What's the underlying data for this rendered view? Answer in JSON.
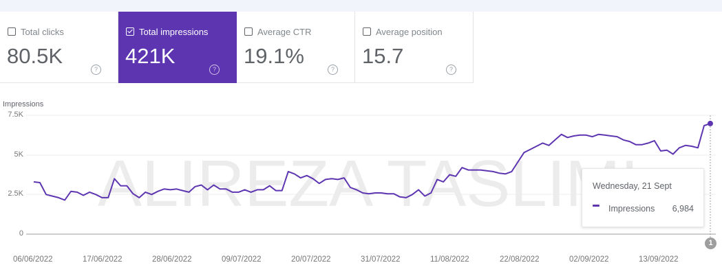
{
  "metrics": [
    {
      "label": "Total clicks",
      "value": "80.5K",
      "checked": false
    },
    {
      "label": "Total impressions",
      "value": "421K",
      "checked": true
    },
    {
      "label": "Average CTR",
      "value": "19.1%",
      "checked": false
    },
    {
      "label": "Average position",
      "value": "15.7",
      "checked": false
    }
  ],
  "help_glyph": "?",
  "watermark": "ALIREZA TASLIMI",
  "accent_color": "#5e35b1",
  "tooltip": {
    "date": "Wednesday, 21 Sept",
    "series": "Impressions",
    "value": "6,984"
  },
  "annotation": {
    "label": "1"
  },
  "chart_data": {
    "type": "line",
    "title": "",
    "ylabel": "Impressions",
    "xlabel": "",
    "ylim": [
      0,
      7500
    ],
    "y_ticks": [
      "0",
      "2.5K",
      "5K",
      "7.5K"
    ],
    "x_ticks": [
      "06/06/2022",
      "17/06/2022",
      "28/06/2022",
      "09/07/2022",
      "20/07/2022",
      "31/07/2022",
      "11/08/2022",
      "22/08/2022",
      "02/09/2022",
      "13/09/2022"
    ],
    "grid": true,
    "legend": "none",
    "series": [
      {
        "name": "Impressions",
        "color": "#5e35b1",
        "start_date": "06/06/2022",
        "end_date": "21/09/2022",
        "values": [
          3300,
          3250,
          2500,
          2400,
          2300,
          2150,
          2700,
          2650,
          2450,
          2650,
          2500,
          2300,
          2300,
          3500,
          3050,
          3050,
          2550,
          2300,
          2650,
          2500,
          2700,
          2850,
          2800,
          2850,
          2750,
          2650,
          3000,
          3100,
          2800,
          3100,
          2850,
          2850,
          2650,
          2650,
          2800,
          2650,
          2800,
          2800,
          3050,
          2750,
          2750,
          3950,
          3800,
          3550,
          3700,
          3500,
          3200,
          3450,
          3500,
          3450,
          3550,
          2950,
          2800,
          2600,
          2550,
          2600,
          2600,
          2550,
          2550,
          2350,
          2300,
          2500,
          2800,
          2400,
          2600,
          3450,
          3300,
          3750,
          3650,
          4200,
          4050,
          4050,
          4050,
          4000,
          3950,
          3850,
          3800,
          3950,
          4550,
          5150,
          5350,
          5550,
          5750,
          5600,
          5950,
          6300,
          6100,
          6200,
          6250,
          6250,
          6150,
          6300,
          6250,
          6200,
          6150,
          5950,
          5850,
          5650,
          5650,
          5750,
          5900,
          5250,
          5300,
          5050,
          5450,
          5600,
          5550,
          5450,
          6850,
          6984
        ]
      }
    ]
  }
}
